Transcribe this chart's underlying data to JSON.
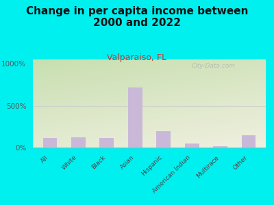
{
  "title": "Change in per capita income between\n2000 and 2022",
  "subtitle": "Valparaiso, FL",
  "categories": [
    "All",
    "White",
    "Black",
    "Asian",
    "Hispanic",
    "American Indian",
    "Multirace",
    "Other"
  ],
  "values": [
    115,
    125,
    110,
    720,
    195,
    50,
    15,
    145
  ],
  "bar_color": "#c9b8d8",
  "title_fontsize": 11,
  "subtitle_fontsize": 9,
  "subtitle_color": "#c0392b",
  "background_color": "#00efef",
  "grad_top_left": "#c8dfb0",
  "grad_bottom_right": "#f0f0e0",
  "yticks": [
    0,
    500,
    1000
  ],
  "ylim": [
    0,
    1050
  ],
  "watermark": "City-Data.com",
  "watermark_color": "#b0b8b0"
}
